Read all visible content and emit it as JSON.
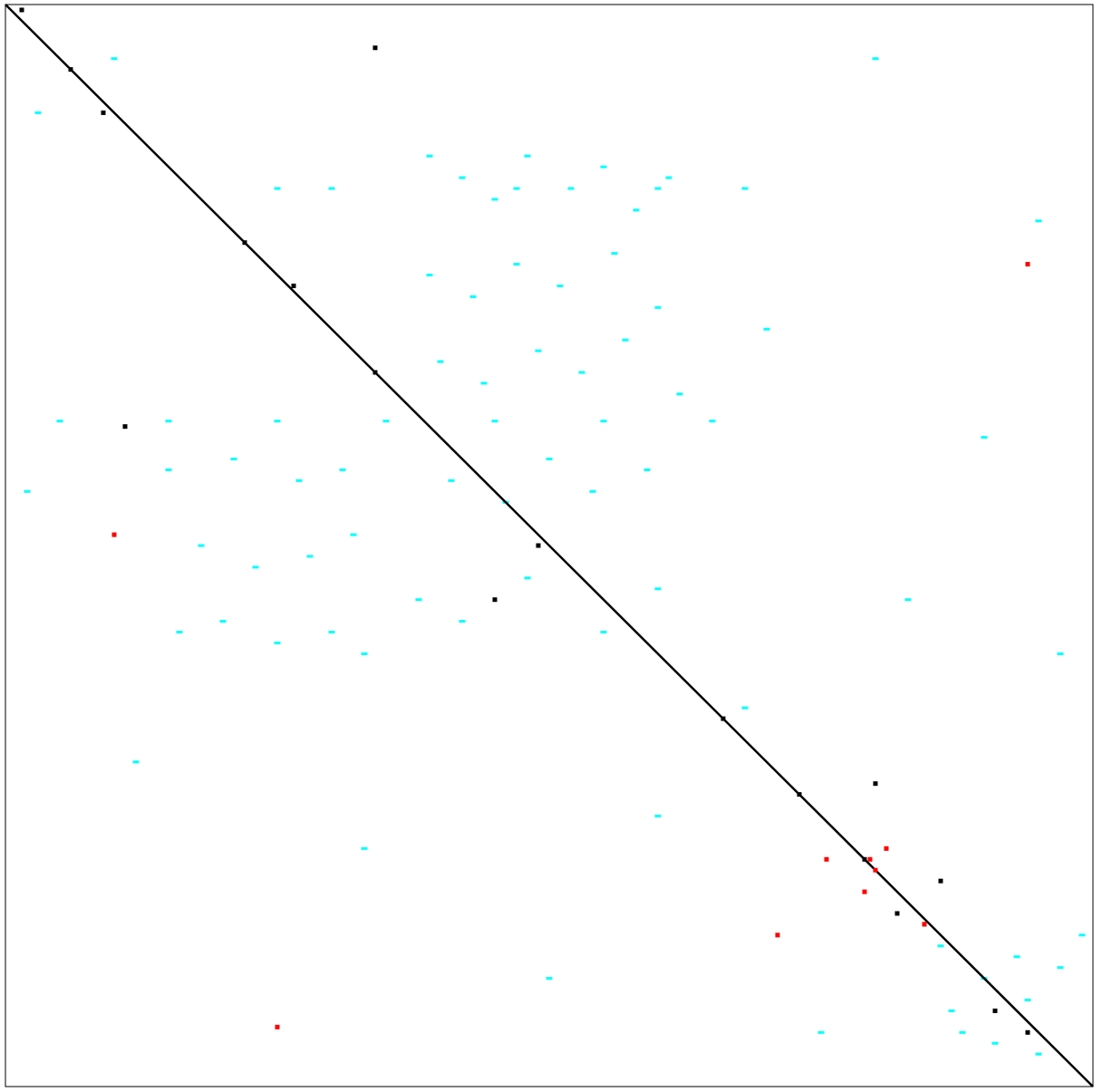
{
  "chart_data": {
    "type": "scatter",
    "xlim": [
      0,
      1
    ],
    "ylim": [
      1,
      0
    ],
    "series": [
      {
        "color": "#00ffff",
        "mode": "markers",
        "x": [
          0.39,
          0.42,
          0.45,
          0.48,
          0.52,
          0.55,
          0.58,
          0.61,
          0.39,
          0.43,
          0.47,
          0.51,
          0.56,
          0.6,
          0.4,
          0.44,
          0.49,
          0.53,
          0.57,
          0.62,
          0.41,
          0.46,
          0.5,
          0.54,
          0.59,
          0.38,
          0.42,
          0.48,
          0.55,
          0.6,
          0.16,
          0.2,
          0.25,
          0.3,
          0.33,
          0.18,
          0.23,
          0.28,
          0.32,
          0.15,
          0.21,
          0.27,
          0.31,
          0.05,
          0.15,
          0.25,
          0.35,
          0.45,
          0.55,
          0.65,
          0.25,
          0.3,
          0.47,
          0.6,
          0.68,
          0.86,
          0.88,
          0.9,
          0.93,
          0.95,
          0.97,
          0.99,
          0.87,
          0.91,
          0.94,
          0.03,
          0.1,
          0.8,
          0.95,
          0.7,
          0.02,
          0.83,
          0.97,
          0.12,
          0.68,
          0.33,
          0.5,
          0.75,
          0.9,
          0.6
        ],
        "y": [
          0.14,
          0.16,
          0.18,
          0.14,
          0.17,
          0.15,
          0.19,
          0.16,
          0.25,
          0.27,
          0.24,
          0.26,
          0.23,
          0.28,
          0.33,
          0.35,
          0.32,
          0.34,
          0.31,
          0.36,
          0.44,
          0.46,
          0.42,
          0.45,
          0.43,
          0.55,
          0.57,
          0.53,
          0.58,
          0.54,
          0.58,
          0.57,
          0.59,
          0.58,
          0.6,
          0.5,
          0.52,
          0.51,
          0.49,
          0.43,
          0.42,
          0.44,
          0.43,
          0.385,
          0.385,
          0.385,
          0.385,
          0.385,
          0.385,
          0.385,
          0.17,
          0.17,
          0.17,
          0.17,
          0.17,
          0.87,
          0.95,
          0.9,
          0.88,
          0.97,
          0.89,
          0.86,
          0.93,
          0.96,
          0.92,
          0.1,
          0.05,
          0.05,
          0.2,
          0.3,
          0.45,
          0.55,
          0.6,
          0.7,
          0.65,
          0.78,
          0.9,
          0.95,
          0.4,
          0.75
        ]
      },
      {
        "color": "#000000",
        "mode": "line",
        "x": [
          0,
          1
        ],
        "y": [
          0,
          1
        ]
      },
      {
        "color": "#000000",
        "mode": "markers",
        "x": [
          0.015,
          0.06,
          0.22,
          0.265,
          0.34,
          0.49,
          0.66,
          0.73,
          0.79,
          0.8,
          0.82,
          0.845,
          0.86,
          0.91,
          0.94,
          0.09,
          0.11,
          0.34,
          0.45
        ],
        "y": [
          0.005,
          0.06,
          0.22,
          0.26,
          0.34,
          0.5,
          0.66,
          0.73,
          0.79,
          0.72,
          0.84,
          0.85,
          0.81,
          0.93,
          0.95,
          0.1,
          0.39,
          0.04,
          0.55
        ]
      },
      {
        "color": "#ff0000",
        "mode": "markers",
        "x": [
          0.795,
          0.8,
          0.79,
          0.81,
          0.845,
          0.755,
          0.94,
          0.25,
          0.1,
          0.71
        ],
        "y": [
          0.79,
          0.8,
          0.82,
          0.78,
          0.85,
          0.79,
          0.24,
          0.945,
          0.49,
          0.86
        ]
      }
    ]
  }
}
